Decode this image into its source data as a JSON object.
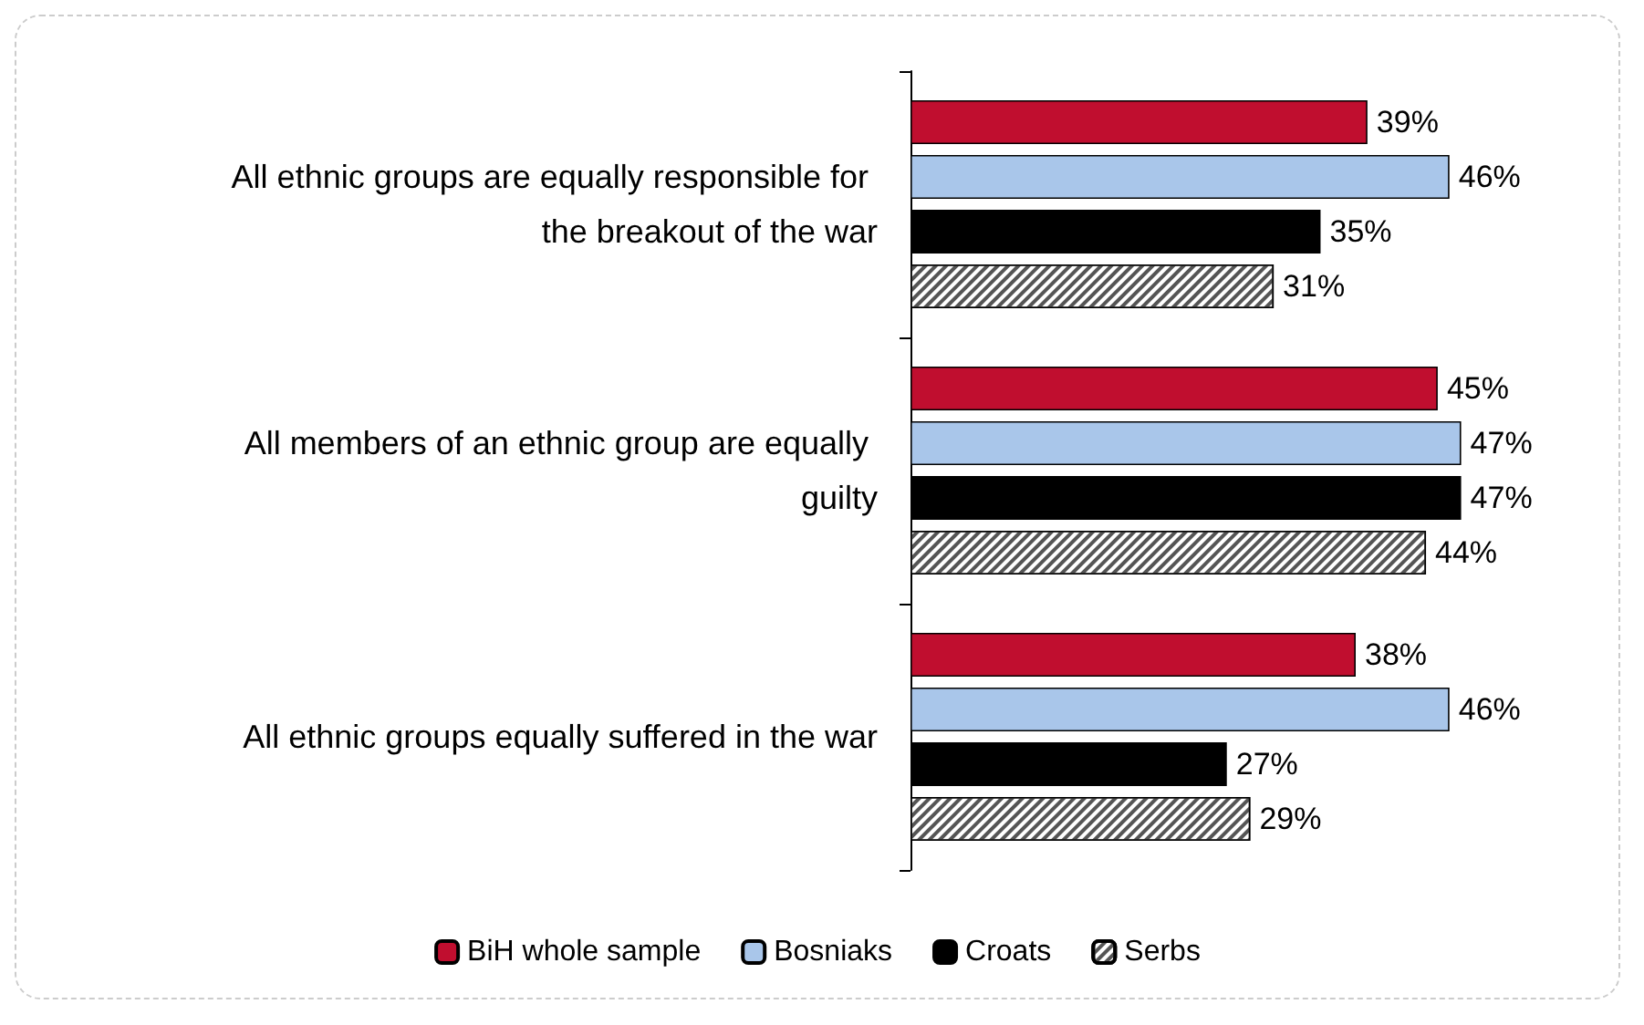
{
  "chart_data": {
    "type": "bar",
    "orientation": "horizontal",
    "categories": [
      "All ethnic groups are equally responsible for the breakout of the war",
      "All members of an ethnic group are equally guilty",
      "All ethnic groups equally suffered in the war"
    ],
    "series": [
      {
        "name": "BiH whole sample",
        "color": "#c00e2f",
        "values": [
          39,
          45,
          38
        ],
        "value_labels": [
          "39%",
          "45%",
          "38%"
        ]
      },
      {
        "name": "Bosniaks",
        "color": "#a9c6ea",
        "values": [
          46,
          47,
          46
        ],
        "value_labels": [
          "46%",
          "47%",
          "46%"
        ]
      },
      {
        "name": "Croats",
        "color": "#000000",
        "values": [
          35,
          47,
          27
        ],
        "value_labels": [
          "35%",
          "47%",
          "27%"
        ]
      },
      {
        "name": "Serbs",
        "color": "#ffffff",
        "values": [
          31,
          44,
          29
        ],
        "value_labels": [
          "31%",
          "44%",
          "29%"
        ]
      }
    ],
    "legend": "bottom"
  }
}
